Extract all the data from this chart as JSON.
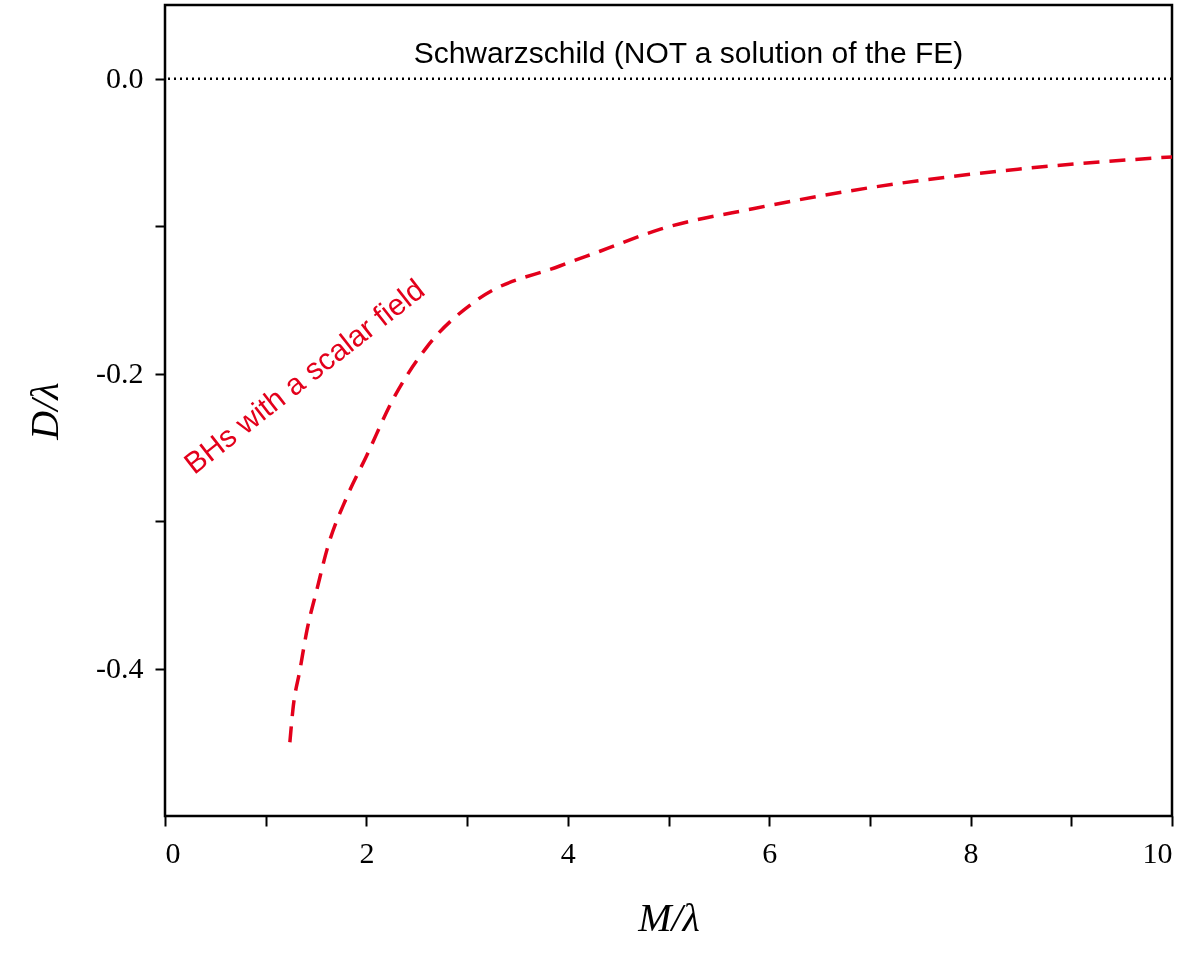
{
  "chart_data": {
    "type": "line",
    "xlabel": "M/λ",
    "ylabel": "D/λ",
    "xlim": [
      0,
      10
    ],
    "ylim": [
      -0.5,
      0.05
    ],
    "xticks": [
      0,
      {
        "value": 1,
        "label": null
      },
      2,
      {
        "value": 3,
        "label": null
      },
      4,
      {
        "value": 5,
        "label": null
      },
      6,
      {
        "value": 7,
        "label": null
      },
      8,
      {
        "value": 9,
        "label": null
      },
      10
    ],
    "yticks": [
      {
        "value": -0.4,
        "label": "-0.4"
      },
      {
        "value": -0.3,
        "label": null
      },
      {
        "value": -0.2,
        "label": "-0.2"
      },
      {
        "value": -0.1,
        "label": null
      },
      {
        "value": 0,
        "label": "0.0"
      }
    ],
    "grid": false,
    "legend": false,
    "line_style": "dashed",
    "marker": "none",
    "series": [
      {
        "name": "BHs with a scalar field",
        "color": "#e3001b",
        "x": [
          1.24,
          1.27,
          1.34,
          1.41,
          1.51,
          1.61,
          1.81,
          2.0,
          2.26,
          2.6,
          3.1,
          3.92,
          4.32,
          4.92,
          5.85,
          6.99,
          8.52,
          10
        ],
        "values": [
          -0.45,
          -0.428,
          -0.401,
          -0.374,
          -0.346,
          -0.319,
          -0.283,
          -0.256,
          -0.218,
          -0.182,
          -0.15,
          -0.127,
          -0.117,
          -0.102,
          -0.088,
          -0.074,
          -0.061,
          -0.053
        ]
      }
    ],
    "ref_lines": [
      {
        "axis": "y",
        "value": 0,
        "label": "Schwarzschild (NOT a solution of the FE)",
        "color": "#000000",
        "line_style": "dotted"
      }
    ]
  }
}
